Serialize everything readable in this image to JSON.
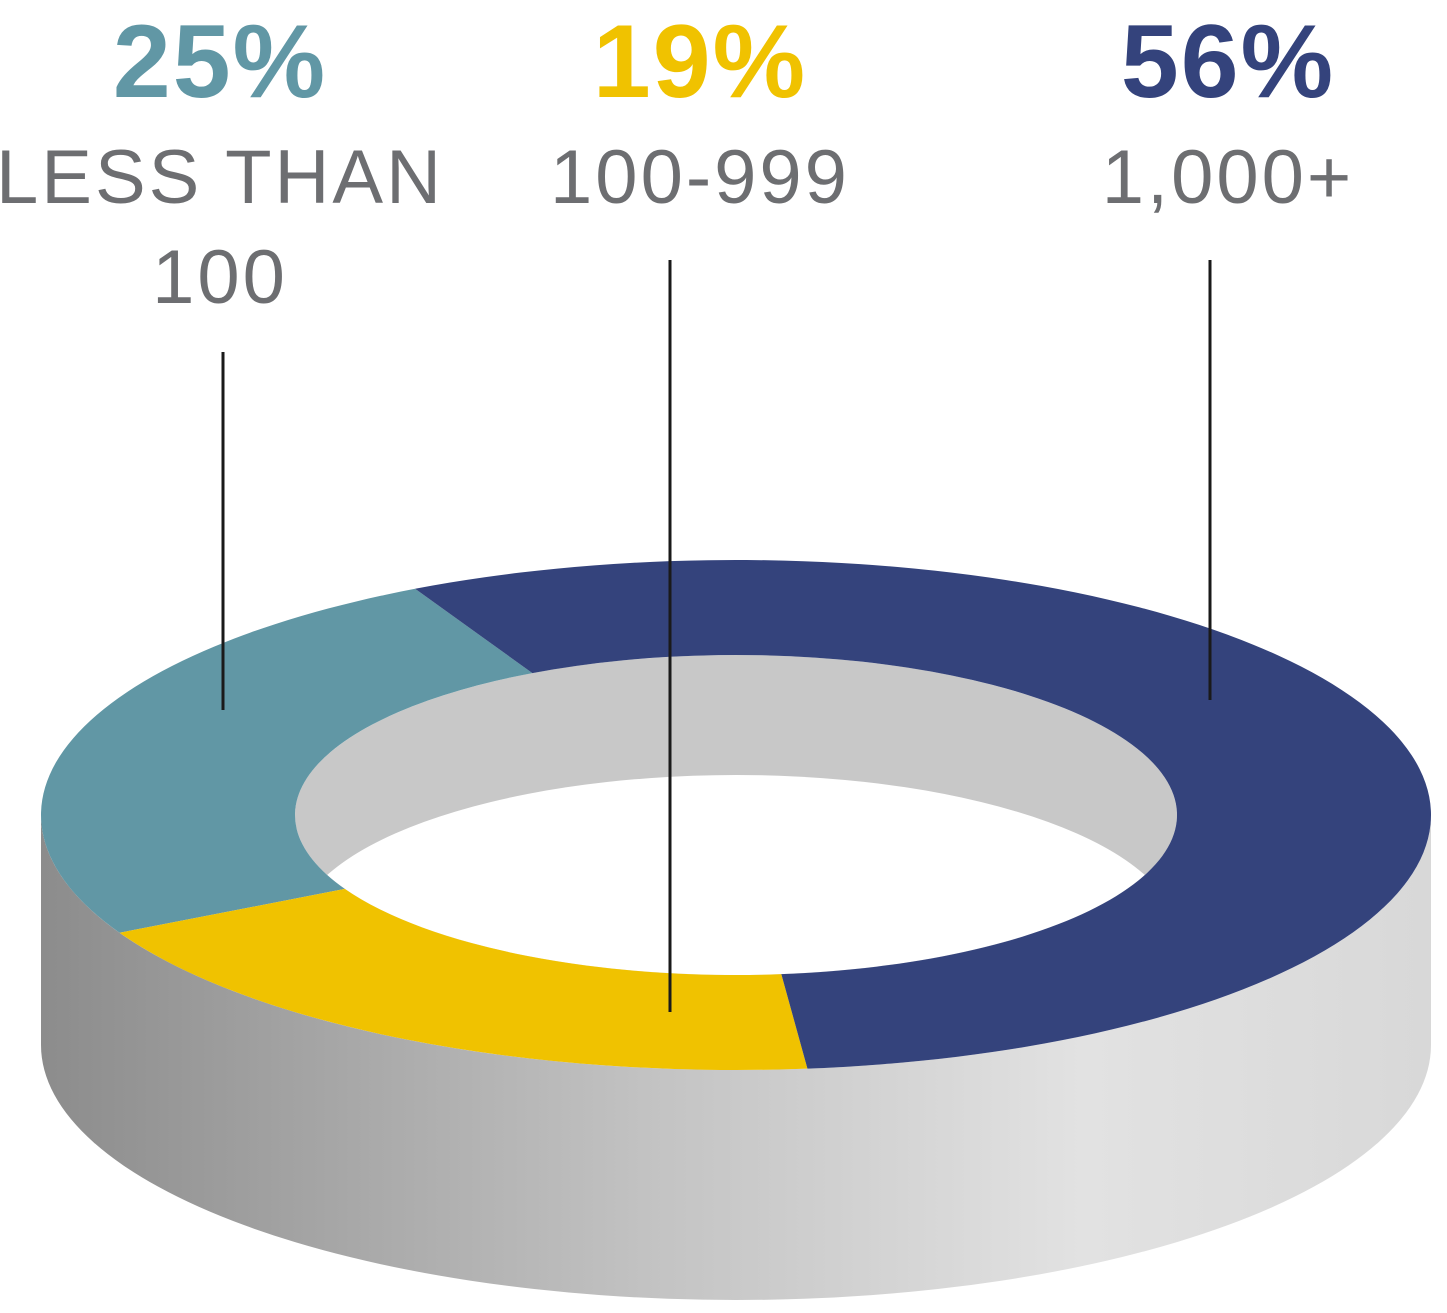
{
  "chart_data": {
    "type": "pie",
    "categories": [
      "LESS THAN 100",
      "100-999",
      "1,000+"
    ],
    "values": [
      25,
      19,
      56
    ],
    "value_labels": [
      "25%",
      "19%",
      "56%"
    ],
    "colors": [
      "#6197a5",
      "#f0c200",
      "#34437c"
    ]
  }
}
